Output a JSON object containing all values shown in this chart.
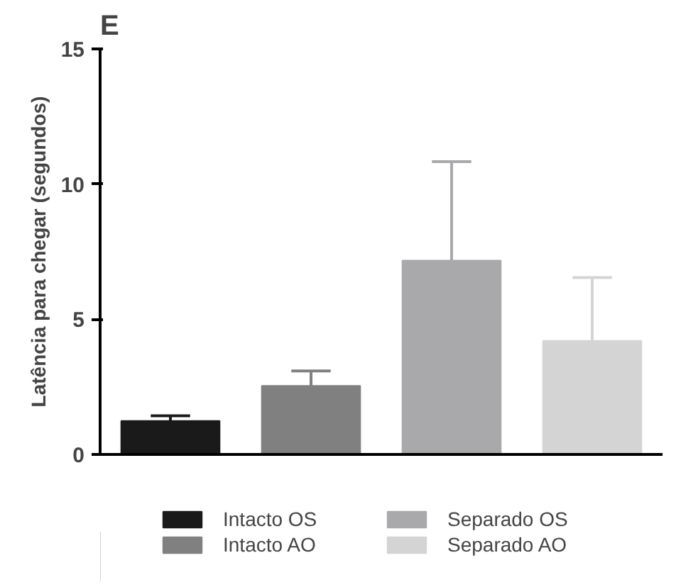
{
  "chart_data": {
    "type": "bar",
    "title": "E",
    "ylabel": "Latência para chegar (segundos)",
    "categories": [
      null,
      null,
      null,
      null
    ],
    "series": [
      {
        "name": "Intacto OS",
        "color": "#1a1a1a",
        "values": [
          1.24,
          null,
          null,
          null
        ],
        "errors": [
          [
            1.24,
            1.43
          ],
          null,
          null,
          null
        ]
      },
      {
        "name": "Intacto AO",
        "color": "#808080",
        "values": [
          null,
          2.54,
          null,
          null
        ],
        "errors": [
          null,
          [
            2.54,
            3.09
          ],
          null,
          null
        ]
      },
      {
        "name": "Separado OS",
        "color": "#a9a9ac",
        "values": [
          null,
          null,
          7.17,
          null
        ],
        "errors": [
          null,
          null,
          [
            7.17,
            10.83
          ],
          null
        ]
      },
      {
        "name": "Separado AO",
        "color": "#d4d4d4",
        "values": [
          null,
          null,
          null,
          4.2
        ],
        "errors": [
          null,
          null,
          null,
          [
            4.2,
            6.54
          ]
        ]
      }
    ],
    "ylim": [
      0,
      15
    ],
    "yticks": [
      0,
      5,
      10,
      15
    ],
    "grid": false,
    "legend": "bottom",
    "tick_labels": "y"
  }
}
